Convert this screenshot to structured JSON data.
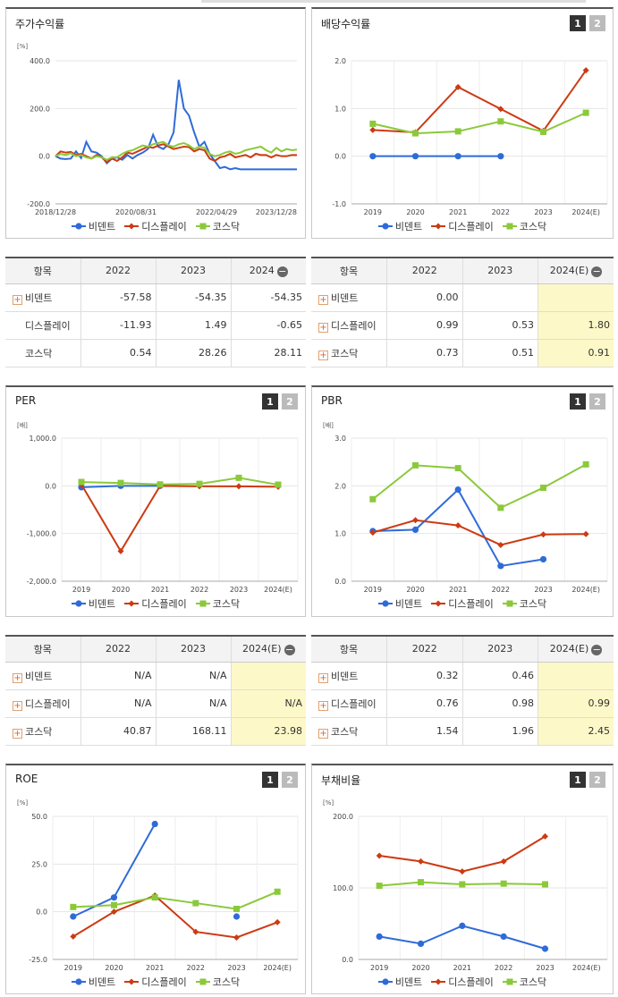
{
  "colors": {
    "vid": "#2f6bd8",
    "disp": "#cc3a12",
    "kosdaq": "#8bc93a"
  },
  "legend": [
    "비덴트",
    "디스플레이",
    "코스닥"
  ],
  "pager": [
    "1",
    "2"
  ],
  "panels": {
    "stock_return": {
      "title": "주가수익률",
      "unit": "[%]"
    },
    "dividend": {
      "title": "배당수익률",
      "unit": ""
    },
    "per": {
      "title": "PER",
      "unit": "[배]"
    },
    "pbr": {
      "title": "PBR",
      "unit": "[배]"
    },
    "roe": {
      "title": "ROE",
      "unit": "[%]"
    },
    "debt": {
      "title": "부채비율",
      "unit": "[%]"
    }
  },
  "tables": {
    "stock_return": {
      "headers": [
        "항목",
        "2022",
        "2023",
        "2024"
      ],
      "rows": [
        {
          "name": "비덴트",
          "plus": true,
          "values": [
            "-57.58",
            "-54.35",
            "-54.35"
          ]
        },
        {
          "name": "디스플레이",
          "plus": false,
          "values": [
            "-11.93",
            "1.49",
            "-0.65"
          ]
        },
        {
          "name": "코스닥",
          "plus": false,
          "values": [
            "0.54",
            "28.26",
            "28.11"
          ]
        }
      ]
    },
    "dividend": {
      "headers": [
        "항목",
        "2022",
        "2023",
        "2024(E)"
      ],
      "rows": [
        {
          "name": "비덴트",
          "plus": true,
          "values": [
            "0.00",
            "",
            ""
          ]
        },
        {
          "name": "디스플레이",
          "plus": true,
          "values": [
            "0.99",
            "0.53",
            "1.80"
          ]
        },
        {
          "name": "코스닥",
          "plus": true,
          "values": [
            "0.73",
            "0.51",
            "0.91"
          ]
        }
      ]
    },
    "per": {
      "headers": [
        "항목",
        "2022",
        "2023",
        "2024(E)"
      ],
      "rows": [
        {
          "name": "비덴트",
          "plus": true,
          "values": [
            "N/A",
            "N/A",
            ""
          ]
        },
        {
          "name": "디스플레이",
          "plus": true,
          "values": [
            "N/A",
            "N/A",
            "N/A"
          ]
        },
        {
          "name": "코스닥",
          "plus": true,
          "values": [
            "40.87",
            "168.11",
            "23.98"
          ]
        }
      ]
    },
    "pbr": {
      "headers": [
        "항목",
        "2022",
        "2023",
        "2024(E)"
      ],
      "rows": [
        {
          "name": "비덴트",
          "plus": true,
          "values": [
            "0.32",
            "0.46",
            ""
          ]
        },
        {
          "name": "디스플레이",
          "plus": true,
          "values": [
            "0.76",
            "0.98",
            "0.99"
          ]
        },
        {
          "name": "코스닥",
          "plus": true,
          "values": [
            "1.54",
            "1.96",
            "2.45"
          ]
        }
      ]
    }
  },
  "chart_data": [
    {
      "id": "stock_return",
      "type": "line",
      "x_ticks": [
        "2018/12/28",
        "2020/08/31",
        "2022/04/29",
        "2023/12/28"
      ],
      "y_ticks": [
        "400.0",
        "200.0",
        "0.0",
        "-200.0"
      ],
      "ylim": [
        -200,
        400
      ],
      "series": [
        {
          "name": "비덴트",
          "values": [
            0,
            -10,
            -12,
            -10,
            20,
            -8,
            60,
            20,
            15,
            0,
            -30,
            -10,
            -5,
            -15,
            5,
            -10,
            5,
            15,
            30,
            90,
            40,
            30,
            50,
            100,
            320,
            200,
            170,
            100,
            40,
            60,
            10,
            -20,
            -50,
            -45,
            -55,
            -50,
            -55,
            -55,
            -55,
            -55,
            -55,
            -55,
            -55,
            -55,
            -55,
            -55,
            -55,
            -55
          ]
        },
        {
          "name": "디스플레이",
          "values": [
            0,
            20,
            15,
            18,
            5,
            10,
            0,
            -10,
            5,
            -5,
            -25,
            -10,
            -20,
            -5,
            15,
            10,
            20,
            30,
            40,
            35,
            45,
            50,
            40,
            30,
            35,
            40,
            38,
            20,
            30,
            25,
            -10,
            -20,
            -5,
            0,
            10,
            -5,
            0,
            5,
            -5,
            10,
            5,
            5,
            -5,
            5,
            0,
            0,
            5,
            5
          ]
        },
        {
          "name": "코스닥",
          "values": [
            0,
            10,
            5,
            12,
            0,
            5,
            -5,
            -10,
            0,
            -5,
            -15,
            -5,
            -5,
            10,
            20,
            25,
            35,
            45,
            40,
            50,
            55,
            60,
            45,
            40,
            50,
            55,
            45,
            30,
            40,
            35,
            10,
            0,
            5,
            15,
            20,
            10,
            15,
            25,
            30,
            35,
            40,
            25,
            15,
            35,
            20,
            30,
            25,
            28
          ]
        }
      ]
    },
    {
      "id": "dividend",
      "type": "line",
      "x_ticks": [
        "2019",
        "2020",
        "2021",
        "2022",
        "2023",
        "2024(E)"
      ],
      "y_ticks": [
        "2.0",
        "1.0",
        "0.0",
        "-1.0"
      ],
      "ylim": [
        -1,
        2
      ],
      "series": [
        {
          "name": "비덴트",
          "values": [
            0,
            0,
            0,
            0,
            null,
            null
          ]
        },
        {
          "name": "디스플레이",
          "values": [
            0.55,
            0.5,
            1.45,
            0.99,
            0.53,
            1.8
          ]
        },
        {
          "name": "코스닥",
          "values": [
            0.68,
            0.48,
            0.52,
            0.73,
            0.51,
            0.91
          ]
        }
      ]
    },
    {
      "id": "per",
      "type": "line",
      "x_ticks": [
        "2019",
        "2020",
        "2021",
        "2022",
        "2023",
        "2024(E)"
      ],
      "y_ticks": [
        "1,000.0",
        "0.0",
        "-1,000.0",
        "-2,000.0"
      ],
      "ylim": [
        -2000,
        1000
      ],
      "series": [
        {
          "name": "비덴트",
          "values": [
            -30,
            0,
            0,
            null,
            null,
            null
          ]
        },
        {
          "name": "디스플레이",
          "values": [
            30,
            -1370,
            0,
            -10,
            -10,
            -20
          ]
        },
        {
          "name": "코스닥",
          "values": [
            80,
            60,
            30,
            41,
            168,
            24
          ]
        }
      ]
    },
    {
      "id": "pbr",
      "type": "line",
      "x_ticks": [
        "2019",
        "2020",
        "2021",
        "2022",
        "2023",
        "2024(E)"
      ],
      "y_ticks": [
        "3.0",
        "2.0",
        "1.0",
        "0.0"
      ],
      "ylim": [
        0,
        3
      ],
      "series": [
        {
          "name": "비덴트",
          "values": [
            1.05,
            1.08,
            1.92,
            0.32,
            0.46,
            null
          ]
        },
        {
          "name": "디스플레이",
          "values": [
            1.02,
            1.28,
            1.17,
            0.76,
            0.98,
            0.99
          ]
        },
        {
          "name": "코스닥",
          "values": [
            1.72,
            2.43,
            2.37,
            1.54,
            1.96,
            2.45
          ]
        }
      ]
    },
    {
      "id": "roe",
      "type": "line",
      "x_ticks": [
        "2019",
        "2020",
        "2021",
        "2022",
        "2023",
        "2024(E)"
      ],
      "y_ticks": [
        "50.0",
        "25.0",
        "0.0",
        "-25.0"
      ],
      "ylim": [
        -25,
        50
      ],
      "series": [
        {
          "name": "비덴트",
          "values": [
            -2.5,
            7.5,
            46,
            null,
            -2.5,
            null
          ]
        },
        {
          "name": "디스플레이",
          "values": [
            -13,
            0,
            8.5,
            -10.5,
            -13.5,
            -5.5
          ]
        },
        {
          "name": "코스닥",
          "values": [
            2.5,
            3.5,
            7.5,
            4.5,
            1.5,
            10.5
          ]
        }
      ]
    },
    {
      "id": "debt",
      "type": "line",
      "x_ticks": [
        "2019",
        "2020",
        "2021",
        "2022",
        "2023",
        "2024(E)"
      ],
      "y_ticks": [
        "200.0",
        "100.0",
        "0.0"
      ],
      "ylim": [
        0,
        200
      ],
      "series": [
        {
          "name": "비덴트",
          "values": [
            32,
            22,
            47,
            32,
            15,
            null
          ]
        },
        {
          "name": "디스플레이",
          "values": [
            145,
            137,
            123,
            137,
            172,
            null
          ]
        },
        {
          "name": "코스닥",
          "values": [
            103,
            108,
            105,
            106,
            105,
            null
          ]
        }
      ]
    }
  ]
}
